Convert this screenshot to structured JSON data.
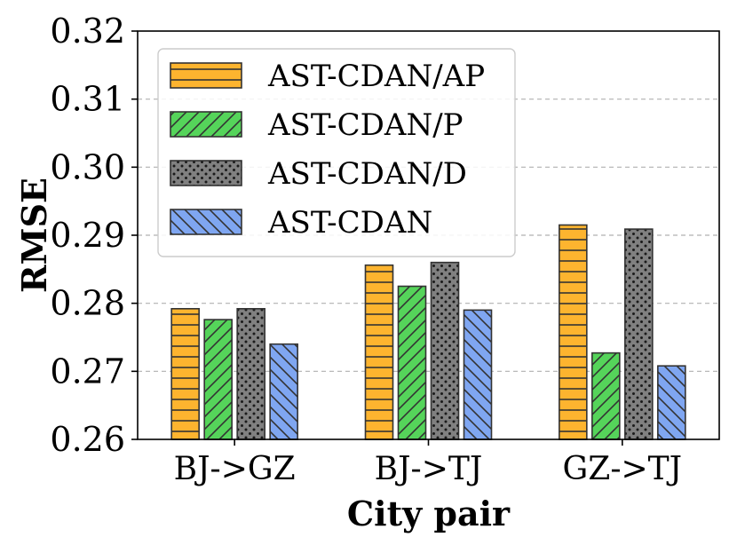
{
  "chart_data": {
    "type": "bar",
    "title": "",
    "xlabel": "City pair",
    "ylabel": "RMSE",
    "categories": [
      "BJ->GZ",
      "BJ->TJ",
      "GZ->TJ"
    ],
    "ylim": [
      0.26,
      0.32
    ],
    "yticks": [
      0.26,
      0.27,
      0.28,
      0.29,
      0.3,
      0.31,
      0.32
    ],
    "ytick_labels": [
      "0.26",
      "0.27",
      "0.28",
      "0.29",
      "0.30",
      "0.31",
      "0.32"
    ],
    "grid": "horizontal dashed",
    "legend_position": "top-left",
    "series": [
      {
        "name": "AST-CDAN/AP",
        "color": "#FDB42F",
        "hatch": "horizontal",
        "values": [
          0.2792,
          0.2856,
          0.2915
        ]
      },
      {
        "name": "AST-CDAN/P",
        "color": "#55D45A",
        "hatch": "forward-diagonal",
        "values": [
          0.2776,
          0.2825,
          0.2727
        ]
      },
      {
        "name": "AST-CDAN/D",
        "color": "#808080",
        "hatch": "dots",
        "values": [
          0.2792,
          0.286,
          0.2909
        ]
      },
      {
        "name": "AST-CDAN",
        "color": "#7FA6F1",
        "hatch": "back-diagonal",
        "values": [
          0.274,
          0.279,
          0.2708
        ]
      }
    ]
  }
}
